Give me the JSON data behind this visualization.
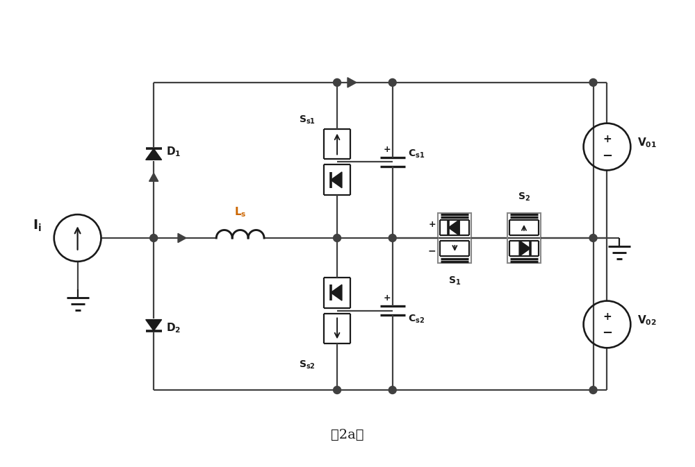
{
  "title": "（2a）",
  "bg_color": "#ffffff",
  "line_color": "#404040",
  "line_width": 1.6,
  "label_color_orange": "#cc6600",
  "label_color_black": "#1a1a1a",
  "fig_width": 10.0,
  "fig_height": 6.73,
  "x_lim": [
    0,
    10
  ],
  "y_lim": [
    0,
    6.73
  ]
}
